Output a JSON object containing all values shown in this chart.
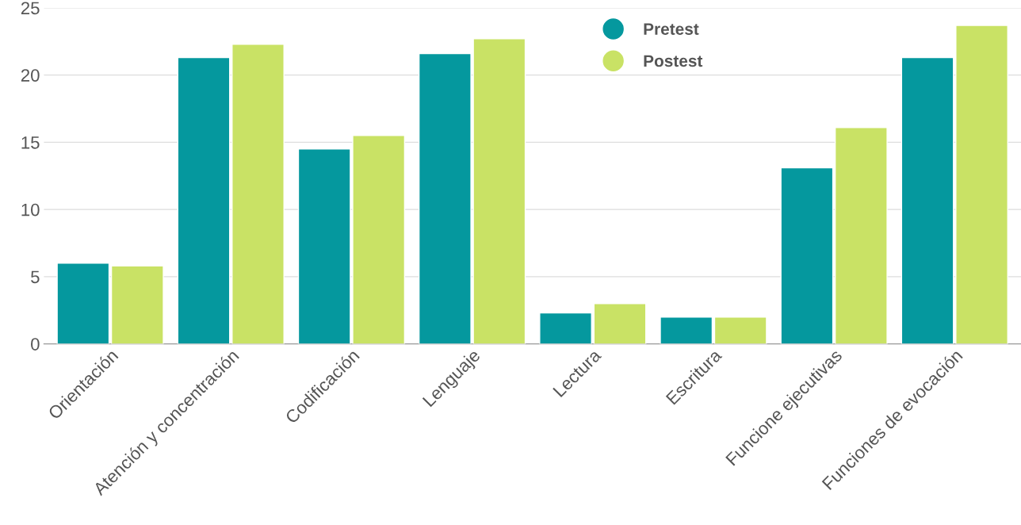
{
  "chart_data": {
    "type": "bar",
    "categories": [
      "Orientación",
      "Atención y concentración",
      "Codificación",
      "Lenguaje",
      "Lectura",
      "Escritura",
      "Funcione ejecutivas",
      "Funciones de evocación"
    ],
    "series": [
      {
        "name": "Pretest",
        "color": "#05989e",
        "values": [
          6.0,
          21.3,
          14.5,
          21.6,
          2.3,
          2.0,
          13.1,
          21.3
        ]
      },
      {
        "name": "Postest",
        "color": "#c9e265",
        "values": [
          5.8,
          22.3,
          15.5,
          22.7,
          3.0,
          2.0,
          16.1,
          23.7
        ]
      }
    ],
    "ylim": [
      0,
      25
    ],
    "yticks": [
      0,
      5,
      10,
      15,
      20,
      25
    ],
    "grid": "y",
    "legend": "top"
  }
}
